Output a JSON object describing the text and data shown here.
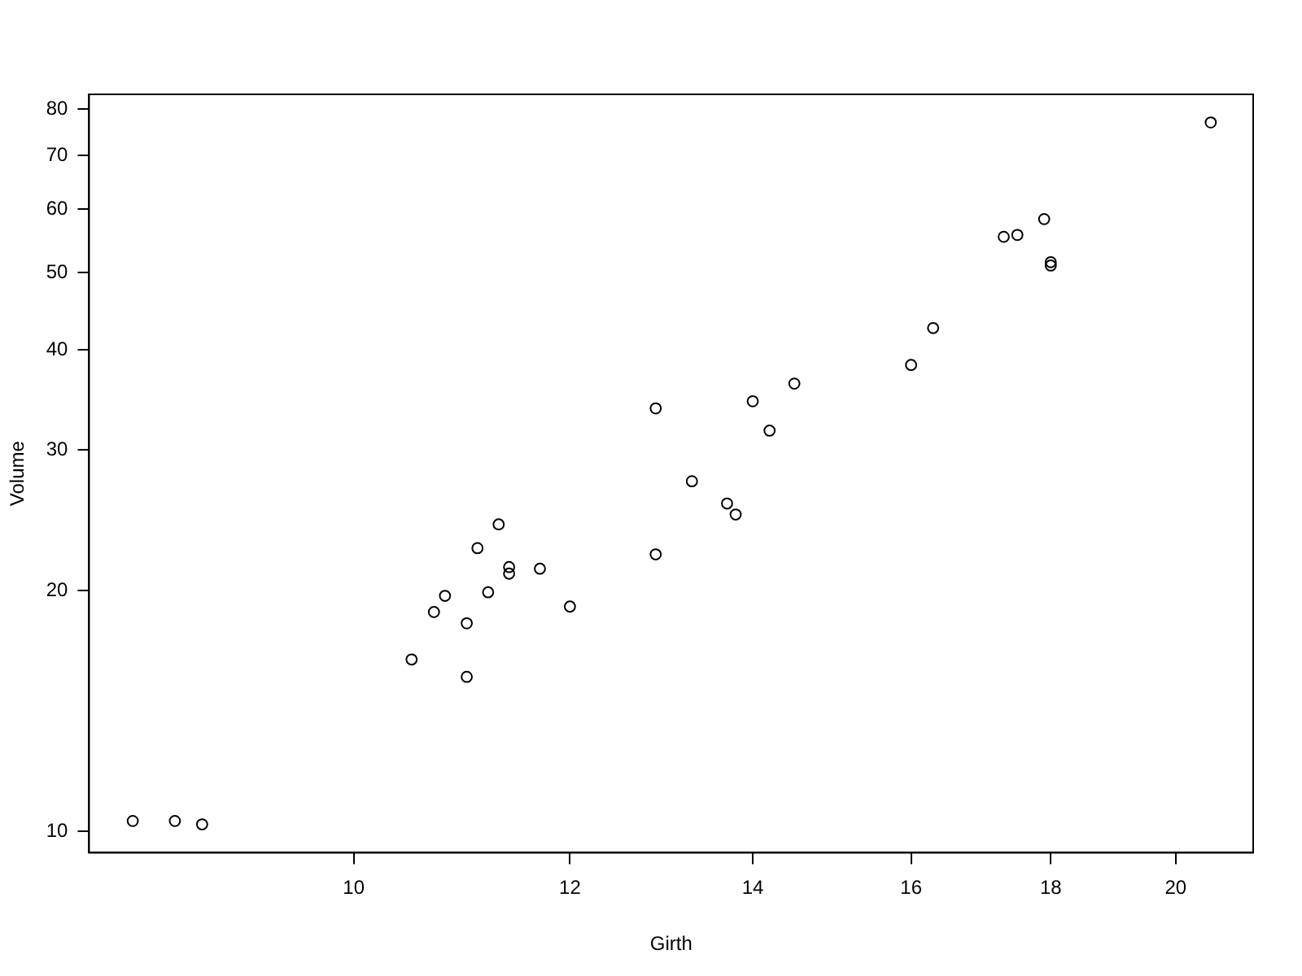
{
  "chart_data": {
    "type": "scatter",
    "xlabel": "Girth",
    "ylabel": "Volume",
    "log": "xy",
    "grid": false,
    "legend": false,
    "marker": "circle",
    "x": [
      8.3,
      8.6,
      8.8,
      10.5,
      10.7,
      10.8,
      11.0,
      11.0,
      11.1,
      11.2,
      11.3,
      11.4,
      11.4,
      11.7,
      12.0,
      12.9,
      12.9,
      13.3,
      13.7,
      13.8,
      14.0,
      14.2,
      14.5,
      16.0,
      16.3,
      17.3,
      17.5,
      17.9,
      18.0,
      18.0,
      20.6
    ],
    "series": [
      {
        "color": "#000000",
        "values": [
          10.3,
          10.3,
          10.2,
          16.4,
          18.8,
          19.7,
          15.6,
          18.2,
          22.6,
          19.9,
          24.2,
          21.0,
          21.4,
          21.3,
          19.1,
          22.2,
          33.8,
          27.4,
          25.7,
          24.9,
          34.5,
          31.7,
          36.3,
          38.3,
          42.6,
          55.4,
          55.7,
          58.3,
          51.5,
          51.0,
          77.0
        ]
      }
    ],
    "xlim": [
      8.0,
      21.35
    ],
    "ylim": [
      9.4,
      83.5
    ],
    "xticks": [
      10,
      12,
      14,
      16,
      18,
      20
    ],
    "yticks": [
      10,
      20,
      30,
      40,
      50,
      60,
      70,
      80
    ]
  }
}
